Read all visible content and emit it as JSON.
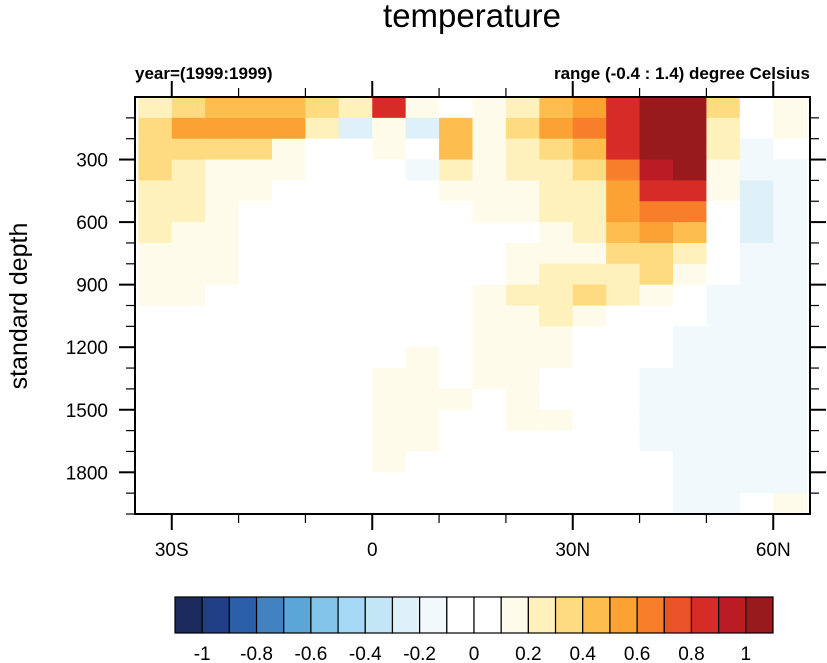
{
  "chart_data": {
    "type": "heatmap",
    "title": "temperature",
    "left_subtitle": "year=(1999:1999)",
    "right_subtitle": "range (-0.4 : 1.4) degree Celsius",
    "xlabel": "",
    "ylabel": "standard depth",
    "x_range": [
      -35.5,
      65.5
    ],
    "y_range": [
      0,
      2000
    ],
    "y_reversed": true,
    "x_ticks": [
      {
        "value": -30,
        "label": "30S"
      },
      {
        "value": 0,
        "label": "0"
      },
      {
        "value": 30,
        "label": "30N"
      },
      {
        "value": 60,
        "label": "60N"
      }
    ],
    "x_minor_step": 10,
    "y_ticks": [
      {
        "value": 300,
        "label": "300"
      },
      {
        "value": 600,
        "label": "600"
      },
      {
        "value": 900,
        "label": "900"
      },
      {
        "value": 1200,
        "label": "1200"
      },
      {
        "value": 1500,
        "label": "1500"
      },
      {
        "value": 1800,
        "label": "1800"
      }
    ],
    "y_minor_step": 100,
    "grid": false,
    "lat_bins_start": [
      -35,
      -30,
      -25,
      -20,
      -15,
      -10,
      -5,
      0,
      5,
      10,
      15,
      20,
      25,
      30,
      35,
      40,
      45,
      50,
      55,
      60
    ],
    "lat_bin_width": 5,
    "depth_bins_start": [
      0,
      100,
      200,
      300,
      400,
      500,
      600,
      700,
      800,
      900,
      1000,
      1100,
      1200,
      1300,
      1400,
      1500,
      1600,
      1700,
      1800,
      1900
    ],
    "depth_bin_width": 100,
    "values": [
      [
        0.25,
        0.35,
        0.45,
        0.45,
        0.45,
        0.35,
        0.25,
        0.85,
        0.15,
        0.05,
        0.15,
        0.25,
        0.45,
        0.55,
        0.85,
        1.15,
        1.05,
        0.35,
        0.05,
        0.15
      ],
      [
        0.35,
        0.55,
        0.55,
        0.55,
        0.55,
        0.25,
        -0.25,
        0.15,
        -0.25,
        0.45,
        0.15,
        0.35,
        0.55,
        0.65,
        0.85,
        1.15,
        1.05,
        0.25,
        0.05,
        0.15
      ],
      [
        0.35,
        0.35,
        0.35,
        0.35,
        0.15,
        0.05,
        0.05,
        0.15,
        0.05,
        0.45,
        0.15,
        0.25,
        0.35,
        0.45,
        0.85,
        1.15,
        1.15,
        0.25,
        -0.15,
        0.05
      ],
      [
        0.35,
        0.25,
        0.15,
        0.15,
        0.15,
        0.05,
        0.05,
        -0.05,
        -0.15,
        0.25,
        0.15,
        0.25,
        0.25,
        0.35,
        0.65,
        0.95,
        1.05,
        0.15,
        -0.15,
        -0.15
      ],
      [
        0.25,
        0.25,
        0.15,
        0.15,
        0.05,
        0.05,
        0.05,
        0.05,
        0.05,
        0.15,
        0.15,
        0.15,
        0.25,
        0.25,
        0.55,
        0.85,
        0.85,
        0.15,
        -0.25,
        -0.15
      ],
      [
        0.25,
        0.25,
        0.15,
        0.05,
        0.05,
        0.05,
        0.05,
        0.05,
        0.05,
        0.05,
        0.15,
        0.15,
        0.25,
        0.25,
        0.55,
        0.65,
        0.65,
        0.05,
        -0.25,
        -0.15
      ],
      [
        0.25,
        0.15,
        0.15,
        0.05,
        0.05,
        0.05,
        0.05,
        0.05,
        0.05,
        0.05,
        0.05,
        0.05,
        0.15,
        0.25,
        0.45,
        0.55,
        0.45,
        0.05,
        -0.25,
        -0.15
      ],
      [
        0.15,
        0.15,
        0.15,
        0.05,
        0.05,
        0.05,
        0.05,
        0.05,
        0.05,
        0.05,
        0.05,
        0.15,
        0.15,
        0.15,
        0.35,
        0.35,
        0.25,
        0.05,
        -0.15,
        -0.15
      ],
      [
        0.15,
        0.15,
        0.15,
        0.05,
        0.05,
        0.05,
        0.05,
        0.05,
        0.05,
        0.05,
        0.05,
        0.15,
        0.25,
        0.25,
        0.25,
        0.35,
        0.15,
        -0.05,
        -0.15,
        -0.15
      ],
      [
        0.15,
        0.15,
        0.05,
        0.05,
        0.05,
        0.05,
        0.05,
        0.05,
        0.05,
        0.05,
        0.15,
        0.25,
        0.25,
        0.35,
        0.25,
        0.15,
        0.05,
        -0.15,
        -0.15,
        -0.15
      ],
      [
        0.05,
        0.05,
        0.05,
        0.05,
        0.05,
        0.05,
        0.05,
        0.05,
        0.05,
        0.05,
        0.15,
        0.15,
        0.25,
        0.15,
        0.05,
        0.05,
        0.05,
        -0.15,
        -0.15,
        -0.15
      ],
      [
        0.05,
        0.05,
        0.05,
        0.05,
        0.05,
        0.05,
        0.05,
        0.05,
        0.05,
        0.05,
        0.15,
        0.15,
        0.15,
        0.05,
        0.05,
        0.05,
        -0.15,
        -0.15,
        -0.15,
        -0.15
      ],
      [
        0.05,
        0.05,
        0.05,
        0.05,
        0.05,
        0.05,
        0.05,
        0.05,
        0.15,
        0.05,
        0.15,
        0.15,
        0.15,
        0.05,
        0.05,
        0.05,
        -0.15,
        -0.15,
        -0.15,
        -0.15
      ],
      [
        0.05,
        0.05,
        0.05,
        0.05,
        0.05,
        0.05,
        0.05,
        0.15,
        0.15,
        0.05,
        0.15,
        0.15,
        0.05,
        0.05,
        0.05,
        -0.15,
        -0.15,
        -0.15,
        -0.15,
        -0.15
      ],
      [
        0.05,
        0.05,
        0.05,
        0.05,
        0.05,
        0.05,
        0.05,
        0.15,
        0.15,
        0.15,
        0.05,
        0.15,
        0.05,
        0.05,
        0.05,
        -0.15,
        -0.15,
        -0.15,
        -0.15,
        -0.15
      ],
      [
        0.05,
        0.05,
        0.05,
        0.05,
        0.05,
        0.05,
        0.05,
        0.15,
        0.15,
        0.05,
        0.05,
        0.15,
        0.15,
        0.05,
        0.05,
        -0.15,
        -0.15,
        -0.15,
        -0.15,
        -0.15
      ],
      [
        0.05,
        0.05,
        0.05,
        0.05,
        0.05,
        0.05,
        0.05,
        0.15,
        0.15,
        0.05,
        0.05,
        0.05,
        0.05,
        0.05,
        0.05,
        -0.15,
        -0.15,
        -0.15,
        -0.15,
        -0.15
      ],
      [
        0.05,
        0.05,
        0.05,
        0.05,
        0.05,
        0.05,
        0.05,
        0.15,
        0.05,
        0.05,
        0.05,
        0.05,
        0.05,
        0.05,
        0.05,
        0.05,
        -0.15,
        -0.15,
        -0.15,
        -0.15
      ],
      [
        0.05,
        0.05,
        0.05,
        0.05,
        0.05,
        0.05,
        0.05,
        0.05,
        0.05,
        0.05,
        0.05,
        0.05,
        0.05,
        0.05,
        0.05,
        0.05,
        -0.15,
        -0.15,
        -0.15,
        -0.15
      ],
      [
        0.05,
        0.05,
        0.05,
        0.05,
        0.05,
        0.05,
        0.05,
        0.05,
        0.05,
        0.05,
        0.05,
        0.05,
        0.05,
        0.05,
        0.05,
        0.05,
        -0.15,
        -0.15,
        -0.05,
        0.15
      ]
    ],
    "colorbar": {
      "levels": [
        -1,
        -0.9,
        -0.8,
        -0.7,
        -0.6,
        -0.5,
        -0.4,
        -0.3,
        -0.2,
        -0.1,
        0,
        0.1,
        0.2,
        0.3,
        0.4,
        0.5,
        0.6,
        0.7,
        0.8,
        0.9,
        1
      ],
      "colors": [
        "#1c2a5e",
        "#213f86",
        "#2b5ea8",
        "#4282c1",
        "#5ba6d9",
        "#83c5ea",
        "#a3d9f4",
        "#c3e6f6",
        "#dff1f8",
        "#f1f9fc",
        "#ffffff",
        "#ffffff",
        "#fffbea",
        "#fef1bb",
        "#fedb80",
        "#fdbe4f",
        "#fca235",
        "#f77e2a",
        "#ea5329",
        "#d72b28",
        "#bb1c23",
        "#981a1d"
      ],
      "tick_labels": [
        "-1",
        "-0.8",
        "-0.6",
        "-0.4",
        "-0.2",
        "0",
        "0.2",
        "0.4",
        "0.6",
        "0.8",
        "1"
      ],
      "tick_values": [
        -1,
        -0.8,
        -0.6,
        -0.4,
        -0.2,
        0,
        0.2,
        0.4,
        0.6,
        0.8,
        1
      ],
      "placement": "bottom"
    }
  }
}
